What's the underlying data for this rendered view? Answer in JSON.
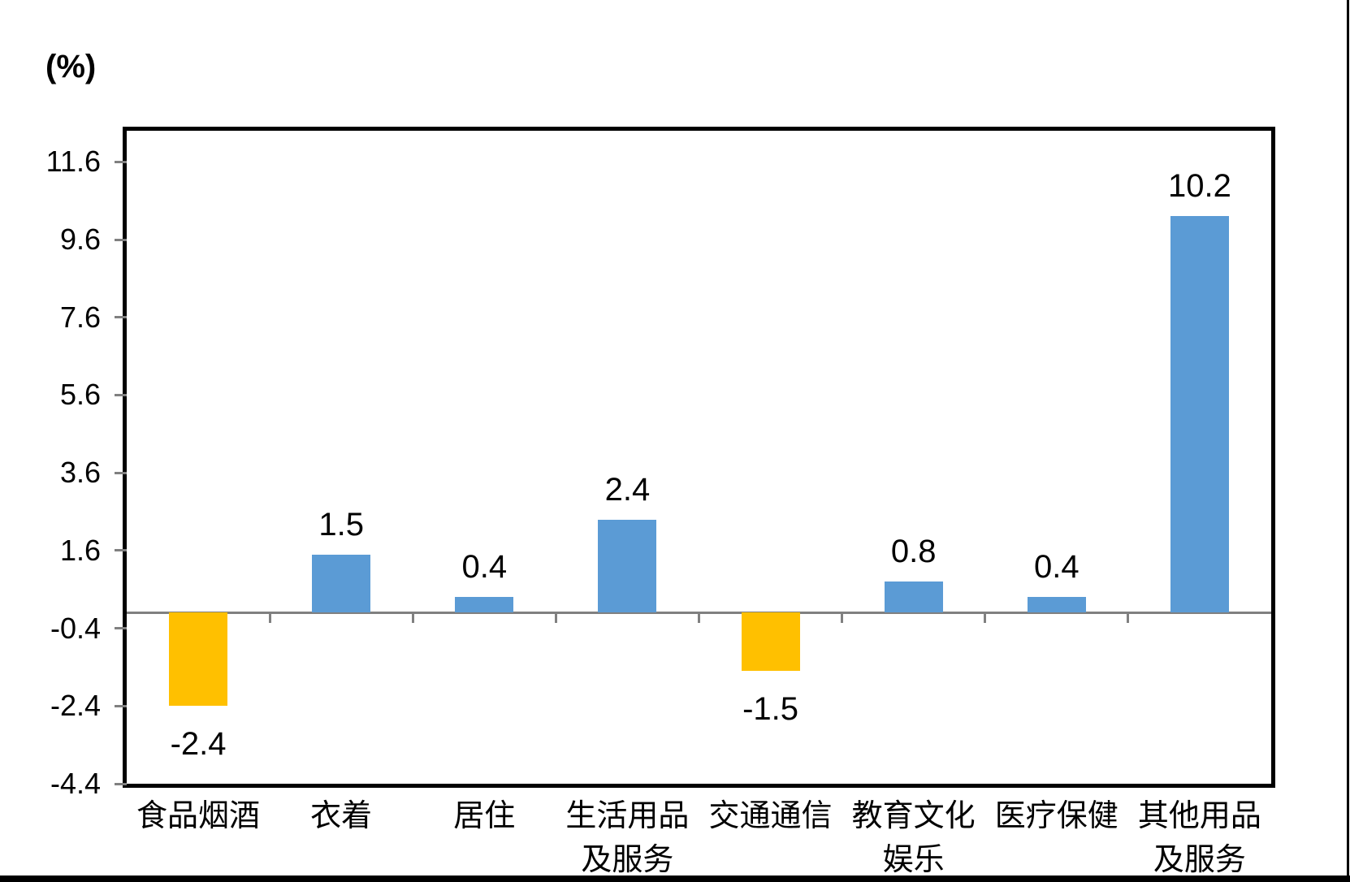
{
  "ylabel_unit": "(%)",
  "colors": {
    "positive_bar": "#5B9BD5",
    "negative_bar": "#FFC000",
    "axis": "#808080",
    "plot_border": "#000000",
    "text": "#000000"
  },
  "chart_data": {
    "type": "bar",
    "title": "",
    "xlabel": "",
    "ylabel": "(%)",
    "categories": [
      "食品烟酒",
      "衣着",
      "居住",
      "生活用品及服务",
      "交通通信",
      "教育文化娱乐",
      "医疗保健",
      "其他用品及服务"
    ],
    "category_display_lines": [
      [
        "食品烟酒"
      ],
      [
        "衣着"
      ],
      [
        "居住"
      ],
      [
        "生活用品",
        "及服务"
      ],
      [
        "交通通信"
      ],
      [
        "教育文化",
        "娱乐"
      ],
      [
        "医疗保健"
      ],
      [
        "其他用品",
        "及服务"
      ]
    ],
    "values": [
      -2.4,
      1.5,
      0.4,
      2.4,
      -1.5,
      0.8,
      0.4,
      10.2
    ],
    "data_labels": [
      "-2.4",
      "1.5",
      "0.4",
      "2.4",
      "-1.5",
      "0.8",
      "0.4",
      "10.2"
    ],
    "bar_colors": [
      "#FFC000",
      "#5B9BD5",
      "#5B9BD5",
      "#5B9BD5",
      "#FFC000",
      "#5B9BD5",
      "#5B9BD5",
      "#5B9BD5"
    ],
    "yticks": [
      11.6,
      9.6,
      7.6,
      5.6,
      3.6,
      1.6,
      -0.4,
      -2.4,
      -4.4
    ],
    "ytick_labels": [
      "11.6",
      "9.6",
      "7.6",
      "5.6",
      "3.6",
      "1.6",
      "-0.4",
      "-2.4",
      "-4.4"
    ],
    "ylim": [
      -4.4,
      12.4
    ],
    "major_unit": 2.0,
    "grid": false,
    "legend": false,
    "data_labels_shown": true
  }
}
